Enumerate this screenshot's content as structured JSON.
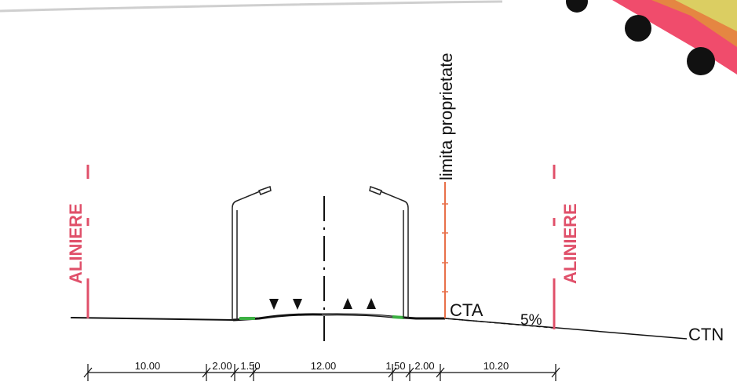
{
  "labels": {
    "property_limit": "limita proprietate",
    "alignment_left": "ALINIERE",
    "alignment_right": "ALINIERE",
    "cta": "CTA",
    "ctn": "CTN",
    "slope": "5%"
  },
  "dimensions": [
    "10.00",
    "2.00",
    "1.50",
    "12.00",
    "1.50",
    "2.00",
    "10.20"
  ],
  "colors": {
    "alignment": "#e0506a",
    "property_limit": "#e8704a",
    "verge": "#3cb043",
    "ink": "#111111",
    "corner_band": "#f04c6c"
  },
  "icons": {
    "lamp_left": "street-lamp-icon",
    "lamp_right": "street-lamp-icon",
    "traffic_left": "down-triangle-icon",
    "traffic_right": "up-triangle-icon"
  }
}
